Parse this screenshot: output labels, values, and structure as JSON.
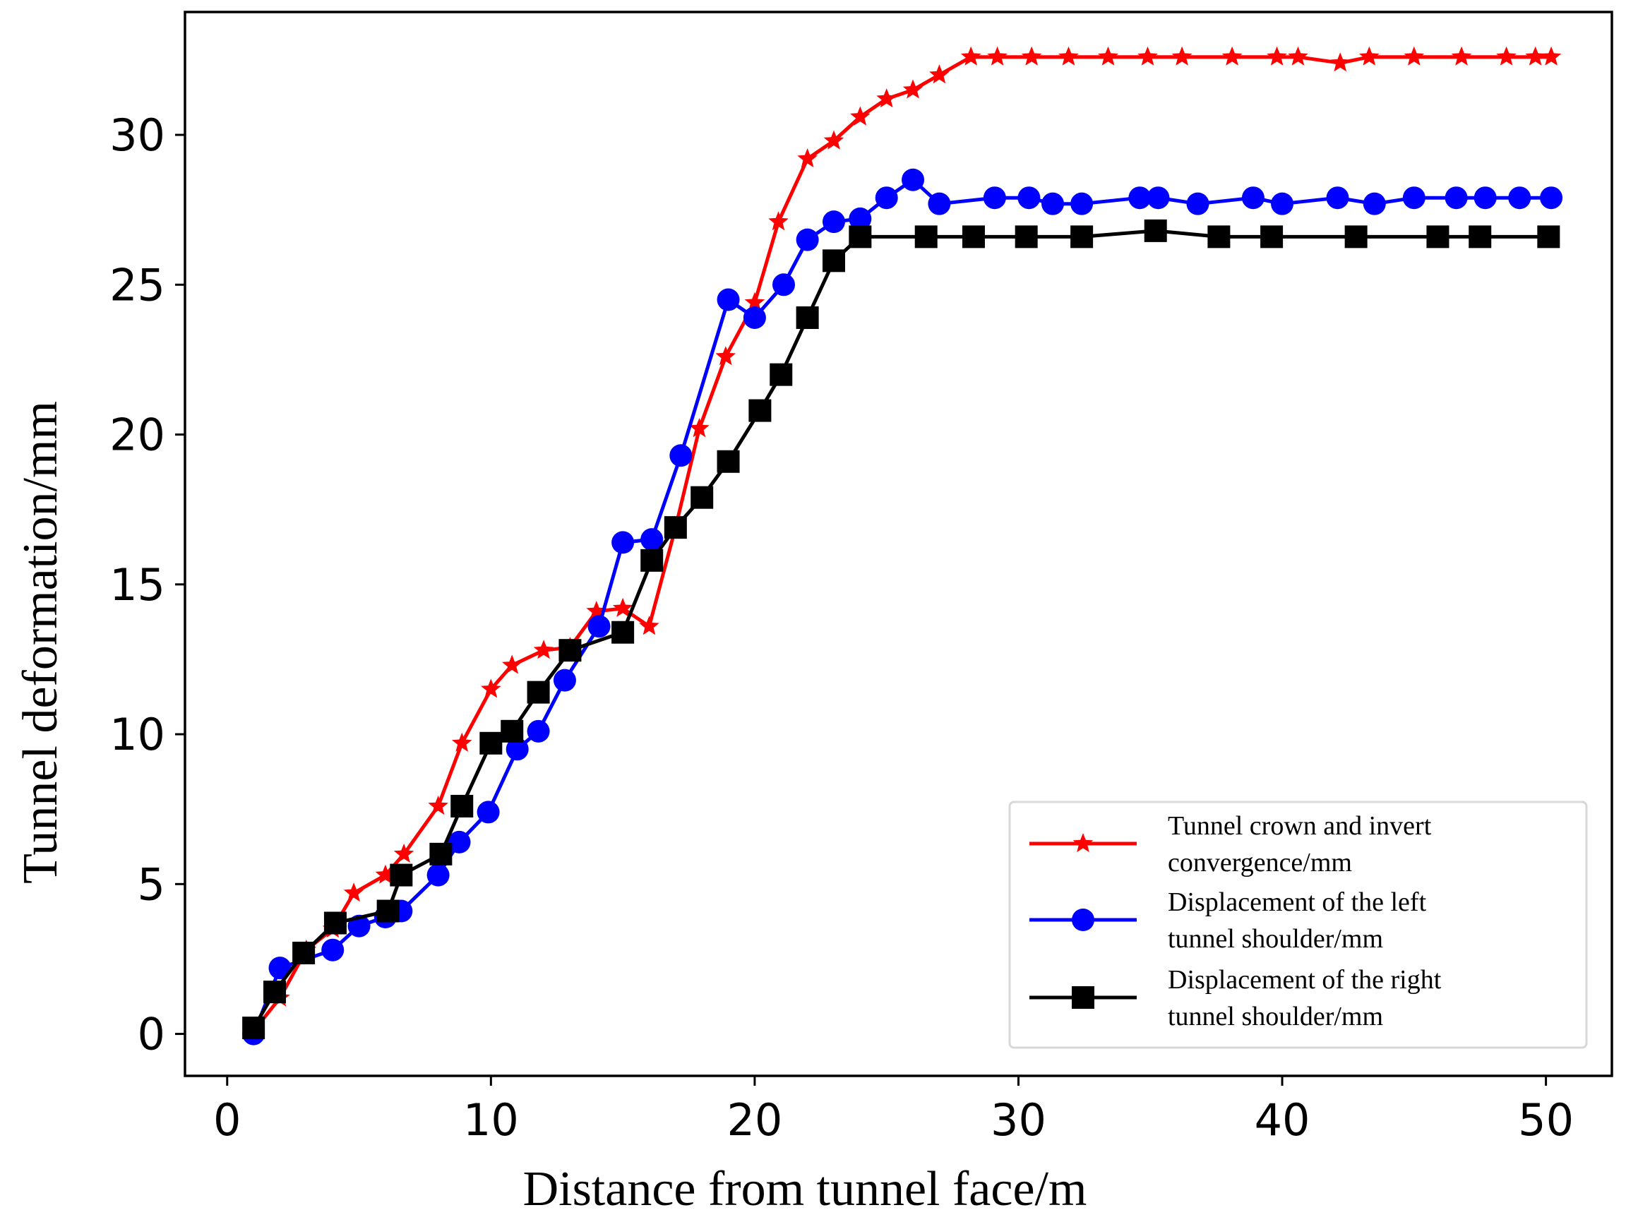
{
  "chart_data": {
    "type": "line",
    "title": "",
    "xlabel": "Distance from tunnel face/m",
    "ylabel": "Tunnel deformation/mm",
    "xlim": [
      -1.6,
      52.5
    ],
    "ylim": [
      -1.4,
      34.1
    ],
    "xticks": [
      0,
      10,
      20,
      30,
      40,
      50
    ],
    "yticks": [
      0,
      5,
      10,
      15,
      20,
      25,
      30
    ],
    "grid": false,
    "legend_position": "lower-right",
    "series": [
      {
        "name_lines": [
          "Tunnel crown and invert",
          "convergence/mm"
        ],
        "color": "#ff0000",
        "marker": "star",
        "x": [
          1,
          2,
          3,
          4,
          4.8,
          6,
          6.7,
          8,
          8.9,
          10,
          10.8,
          12,
          13,
          14,
          15,
          16,
          17,
          17.9,
          18.9,
          20,
          20.9,
          22,
          23,
          24,
          25,
          26,
          27,
          28.2,
          29.2,
          30.5,
          31.9,
          33.4,
          34.9,
          36.2,
          38.1,
          39.8,
          40.6,
          42.2,
          43.3,
          45,
          46.8,
          48.5,
          49.6,
          50.2
        ],
        "y": [
          0.1,
          1.2,
          2.8,
          3.5,
          4.7,
          5.3,
          6.0,
          7.6,
          9.7,
          11.5,
          12.3,
          12.8,
          12.9,
          14.1,
          14.2,
          13.6,
          16.9,
          20.2,
          22.6,
          24.4,
          27.1,
          29.2,
          29.8,
          30.6,
          31.2,
          31.5,
          32.0,
          32.6,
          32.6,
          32.6,
          32.6,
          32.6,
          32.6,
          32.6,
          32.6,
          32.6,
          32.6,
          32.4,
          32.6,
          32.6,
          32.6,
          32.6,
          32.6,
          32.6
        ]
      },
      {
        "name_lines": [
          "Displacement of the left",
          "tunnel shoulder/mm"
        ],
        "color": "#0000ff",
        "marker": "circle",
        "x": [
          1,
          2,
          4,
          5,
          6,
          6.6,
          8,
          8.8,
          9.9,
          11,
          11.8,
          12.8,
          14.1,
          15,
          16.1,
          17.2,
          19,
          20,
          21.1,
          22,
          23,
          24,
          25,
          26,
          27,
          29.1,
          30.4,
          31.3,
          32.4,
          34.6,
          35.3,
          36.8,
          38.9,
          40,
          42.1,
          43.5,
          45,
          46.6,
          47.7,
          49,
          50.2
        ],
        "y": [
          0.0,
          2.2,
          2.8,
          3.6,
          3.9,
          4.1,
          5.3,
          6.4,
          7.4,
          9.5,
          10.1,
          11.8,
          13.6,
          16.4,
          16.5,
          19.3,
          24.5,
          23.9,
          25.0,
          26.5,
          27.1,
          27.2,
          27.9,
          28.5,
          27.7,
          27.9,
          27.9,
          27.7,
          27.7,
          27.9,
          27.9,
          27.7,
          27.9,
          27.7,
          27.9,
          27.7,
          27.9,
          27.9,
          27.9,
          27.9,
          27.9
        ]
      },
      {
        "name_lines": [
          "Displacement of the right",
          "tunnel shoulder/mm"
        ],
        "color": "#000000",
        "marker": "square",
        "x": [
          1,
          1.8,
          2.9,
          4.1,
          6.1,
          6.6,
          8.1,
          8.9,
          10,
          10.8,
          11.8,
          13,
          15,
          16.1,
          17,
          18,
          19,
          20.2,
          21,
          22,
          23,
          24,
          26.5,
          28.3,
          30.3,
          32.4,
          35.2,
          37.6,
          39.6,
          42.8,
          45.9,
          47.5,
          50.1
        ],
        "y": [
          0.2,
          1.4,
          2.7,
          3.7,
          4.1,
          5.3,
          6.0,
          7.6,
          9.7,
          10.1,
          11.4,
          12.8,
          13.4,
          15.8,
          16.9,
          17.9,
          19.1,
          20.8,
          22.0,
          23.9,
          25.8,
          26.6,
          26.6,
          26.6,
          26.6,
          26.6,
          26.8,
          26.6,
          26.6,
          26.6,
          26.6,
          26.6,
          26.6
        ]
      }
    ]
  }
}
